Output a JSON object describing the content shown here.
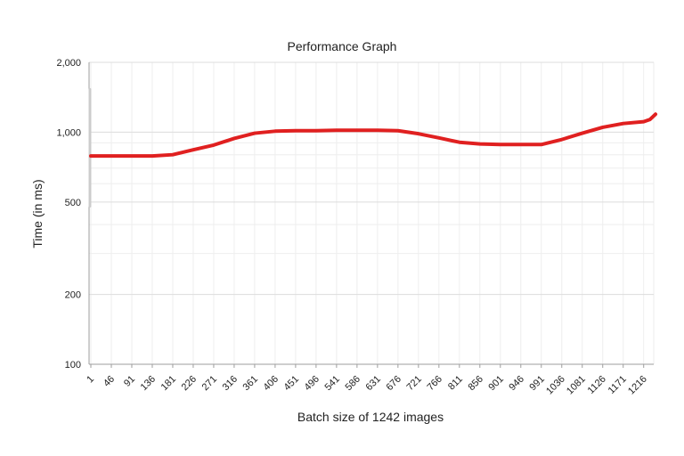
{
  "chart_data": {
    "type": "line",
    "title": "Performance Graph",
    "xlabel": "Batch size of 1242 images",
    "ylabel": "Time (in ms)",
    "y_scale": "log",
    "ylim": [
      100,
      2000
    ],
    "xlim": [
      1,
      1242
    ],
    "y_ticks": [
      {
        "value": 100,
        "label": "100"
      },
      {
        "value": 200,
        "label": "200"
      },
      {
        "value": 500,
        "label": "500"
      },
      {
        "value": 1000,
        "label": "1,000"
      },
      {
        "value": 2000,
        "label": "2,000"
      }
    ],
    "x_ticks": [
      "1",
      "46",
      "91",
      "136",
      "181",
      "226",
      "271",
      "316",
      "361",
      "406",
      "451",
      "496",
      "541",
      "586",
      "631",
      "676",
      "721",
      "766",
      "811",
      "856",
      "901",
      "946",
      "991",
      "1036",
      "1081",
      "1126",
      "1171",
      "1216"
    ],
    "grid": true,
    "legend": "none",
    "series": [
      {
        "color": "#e02020",
        "x": [
          1,
          46,
          91,
          136,
          181,
          226,
          271,
          316,
          361,
          406,
          451,
          496,
          541,
          586,
          631,
          676,
          721,
          766,
          811,
          856,
          901,
          946,
          991,
          1036,
          1081,
          1126,
          1171,
          1216,
          1230,
          1242
        ],
        "y": [
          790,
          790,
          790,
          790,
          800,
          840,
          880,
          940,
          990,
          1010,
          1015,
          1015,
          1020,
          1020,
          1020,
          1015,
          985,
          945,
          905,
          890,
          885,
          885,
          885,
          930,
          990,
          1050,
          1090,
          1110,
          1135,
          1195
        ]
      }
    ],
    "outlier": {
      "color": "#cccccc",
      "x": 1,
      "y_range": [
        480,
        1530
      ]
    }
  }
}
